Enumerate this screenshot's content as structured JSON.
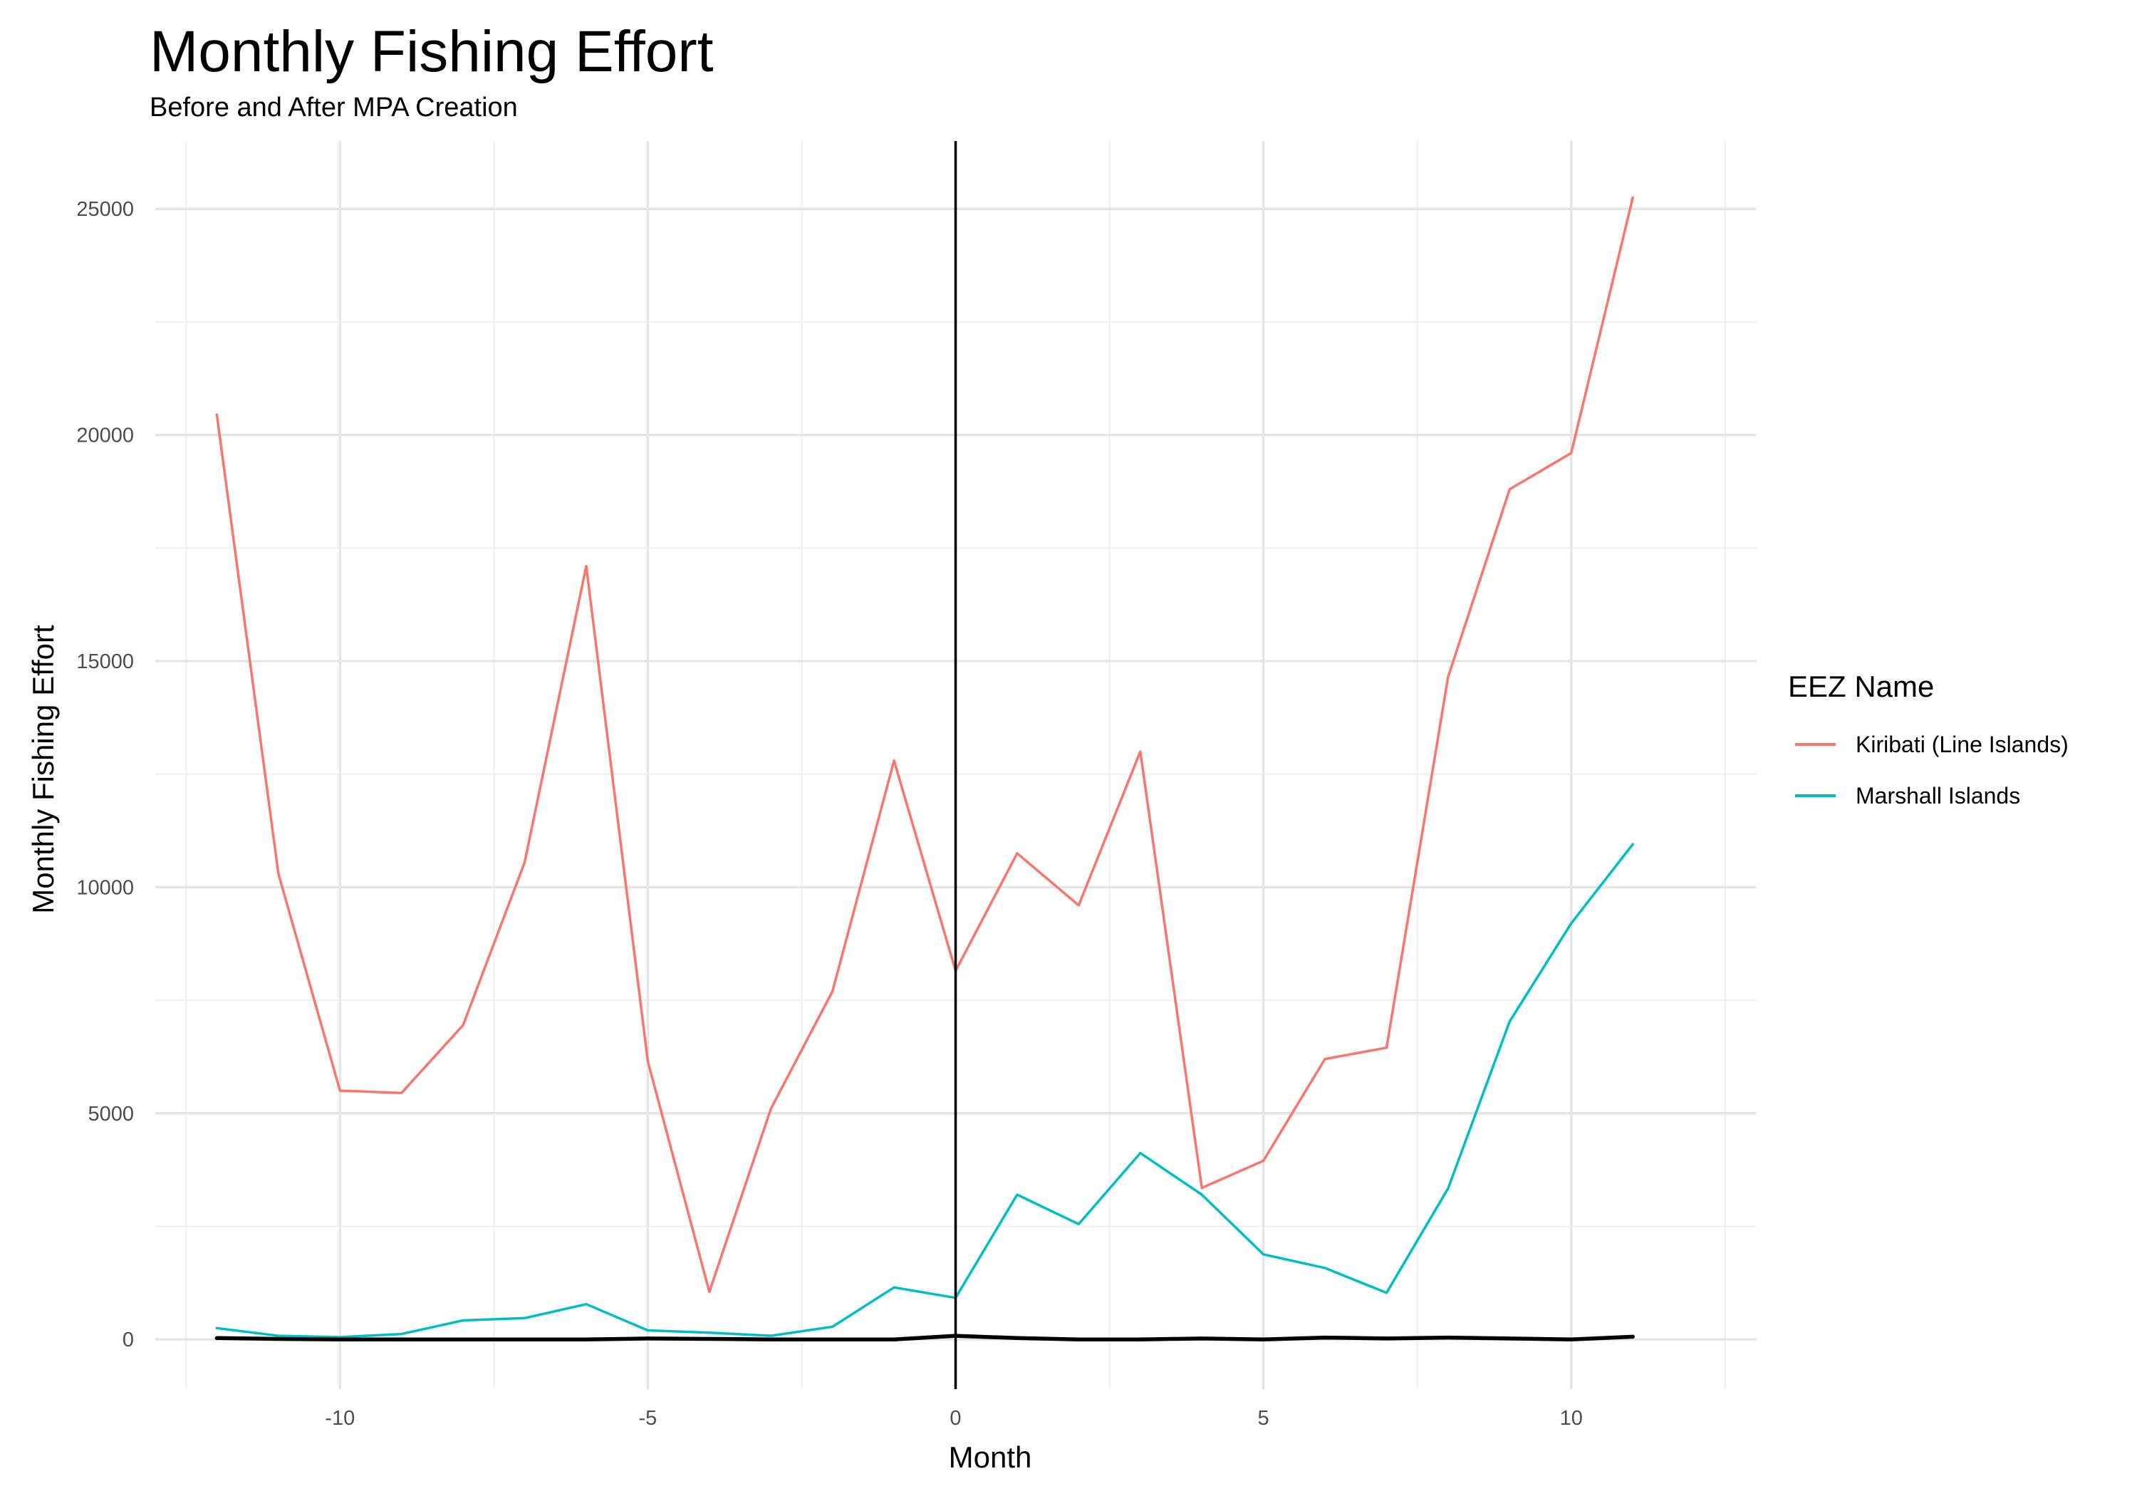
{
  "chart_data": {
    "type": "line",
    "title": "Monthly Fishing Effort",
    "subtitle": "Before and After MPA Creation",
    "xlabel": "Month",
    "ylabel": "Monthly Fishing Effort",
    "xlim": [
      -13,
      13
    ],
    "ylim": [
      -1100,
      26500
    ],
    "x_ticks": [
      -10,
      -5,
      0,
      5,
      10
    ],
    "y_ticks": [
      0,
      5000,
      10000,
      15000,
      20000,
      25000
    ],
    "grid": true,
    "legend_title": "EEZ Name",
    "legend_position": "right",
    "vline_x": 0,
    "x": [
      -12,
      -11,
      -10,
      -9,
      -8,
      -7,
      -6,
      -5,
      -4,
      -3,
      -2,
      -1,
      0,
      1,
      2,
      3,
      4,
      5,
      6,
      7,
      8,
      9,
      10,
      11
    ],
    "series": [
      {
        "name": "Kiribati (Line Islands)",
        "color": "#f8766d",
        "values": [
          20450,
          10300,
          5500,
          5450,
          6950,
          10550,
          17100,
          6150,
          1050,
          5100,
          7700,
          12800,
          8150,
          10750,
          9600,
          13000,
          3350,
          3950,
          6200,
          6450,
          14650,
          18800,
          19600,
          25250
        ]
      },
      {
        "name": "Marshall Islands",
        "color": "#00bfc4",
        "values": [
          250,
          80,
          50,
          120,
          420,
          470,
          780,
          200,
          150,
          80,
          280,
          1150,
          920,
          3200,
          2550,
          4120,
          3200,
          1880,
          1580,
          1030,
          3340,
          7030,
          9200,
          10950
        ]
      },
      {
        "color": "#000000",
        "values": [
          30,
          10,
          0,
          0,
          0,
          0,
          0,
          20,
          10,
          0,
          0,
          0,
          80,
          30,
          0,
          0,
          20,
          0,
          40,
          20,
          40,
          20,
          0,
          60
        ]
      }
    ]
  }
}
